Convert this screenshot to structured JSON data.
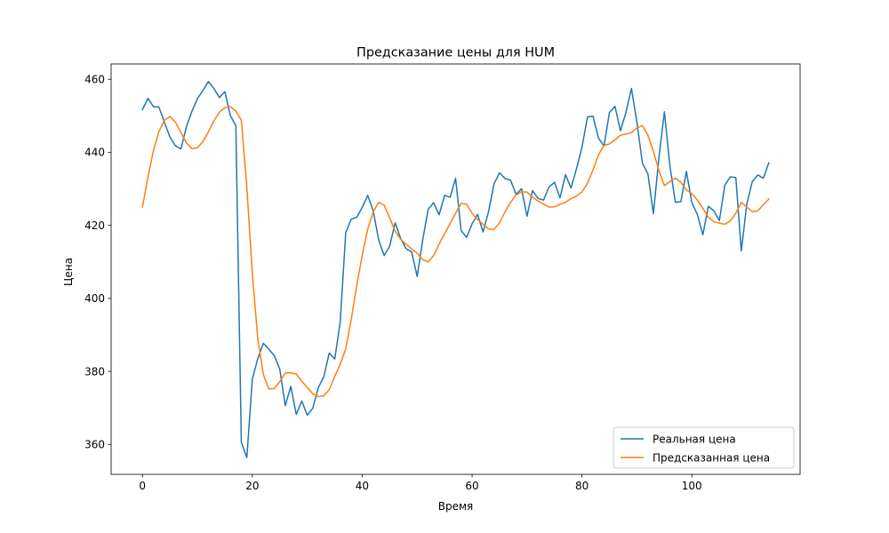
{
  "chart_data": {
    "type": "line",
    "title": "Предсказание цены для HUM",
    "xlabel": "Время",
    "ylabel": "Цена",
    "xlim": [
      -5.7,
      119.7
    ],
    "ylim": [
      351.8,
      464.2
    ],
    "xticks": [
      0,
      20,
      40,
      60,
      80,
      100
    ],
    "yticks": [
      360,
      380,
      400,
      420,
      440,
      460
    ],
    "grid": false,
    "legend_position": "lower right",
    "series": [
      {
        "name": "Реальная цена",
        "color": "#1f77b4",
        "x": [
          0,
          1,
          2,
          3,
          4,
          5,
          6,
          7,
          8,
          9,
          10,
          11,
          12,
          13,
          14,
          15,
          16,
          17,
          18,
          19,
          20,
          21,
          22,
          23,
          24,
          25,
          26,
          27,
          28,
          29,
          30,
          31,
          32,
          33,
          34,
          35,
          36,
          37,
          38,
          39,
          40,
          41,
          42,
          43,
          44,
          45,
          46,
          47,
          48,
          49,
          50,
          51,
          52,
          53,
          54,
          55,
          56,
          57,
          58,
          59,
          60,
          61,
          62,
          63,
          64,
          65,
          66,
          67,
          68,
          69,
          70,
          71,
          72,
          73,
          74,
          75,
          76,
          77,
          78,
          79,
          80,
          81,
          82,
          83,
          84,
          85,
          86,
          87,
          88,
          89,
          90,
          91,
          92,
          93,
          94,
          95,
          96,
          97,
          98,
          99,
          100,
          101,
          102,
          103,
          104,
          105,
          106,
          107,
          108,
          109,
          110,
          111,
          112,
          113,
          114
        ],
        "values": [
          451.7,
          454.8,
          452.5,
          452.4,
          448.2,
          444.2,
          441.8,
          440.9,
          447.0,
          451.2,
          454.7,
          456.9,
          459.4,
          457.5,
          455.0,
          456.6,
          450.1,
          447.3,
          360.6,
          356.4,
          377.9,
          383.5,
          387.7,
          386.1,
          384.3,
          380.6,
          370.6,
          375.9,
          368.2,
          371.9,
          368.0,
          369.9,
          375.5,
          378.5,
          385.0,
          383.4,
          393.6,
          418.0,
          421.7,
          422.2,
          424.9,
          428.2,
          424.0,
          416.0,
          411.7,
          414.3,
          420.7,
          416.4,
          413.6,
          412.7,
          406.0,
          415.9,
          424.4,
          426.2,
          422.9,
          428.2,
          427.7,
          432.9,
          418.6,
          416.7,
          420.4,
          423.0,
          418.2,
          423.8,
          431.4,
          434.4,
          432.8,
          432.4,
          428.5,
          430.0,
          422.5,
          429.5,
          427.4,
          426.9,
          430.5,
          431.8,
          427.5,
          433.9,
          430.2,
          435.5,
          441.4,
          449.7,
          449.9,
          443.9,
          441.7,
          450.9,
          452.6,
          445.9,
          450.9,
          457.5,
          448.2,
          437.0,
          434.1,
          423.2,
          438.5,
          451.1,
          436.3,
          426.3,
          426.5,
          434.8,
          426.2,
          423.0,
          417.4,
          425.2,
          424.0,
          421.3,
          431.0,
          433.3,
          433.1,
          413.0,
          425.8,
          432.0,
          433.8,
          432.9,
          437.1
        ]
      },
      {
        "name": "Предсказанная цена",
        "color": "#ff7f0e",
        "x": [
          0,
          1,
          2,
          3,
          4,
          5,
          6,
          7,
          8,
          9,
          10,
          11,
          12,
          13,
          14,
          15,
          16,
          17,
          18,
          19,
          20,
          21,
          22,
          23,
          24,
          25,
          26,
          27,
          28,
          29,
          30,
          31,
          32,
          33,
          34,
          35,
          36,
          37,
          38,
          39,
          40,
          41,
          42,
          43,
          44,
          45,
          46,
          47,
          48,
          49,
          50,
          51,
          52,
          53,
          54,
          55,
          56,
          57,
          58,
          59,
          60,
          61,
          62,
          63,
          64,
          65,
          66,
          67,
          68,
          69,
          70,
          71,
          72,
          73,
          74,
          75,
          76,
          77,
          78,
          79,
          80,
          81,
          82,
          83,
          84,
          85,
          86,
          87,
          88,
          89,
          90,
          91,
          92,
          93,
          94,
          95,
          96,
          97,
          98,
          99,
          100,
          101,
          102,
          103,
          104,
          105,
          106,
          107,
          108,
          109,
          110,
          111,
          112,
          113,
          114
        ],
        "values": [
          425.0,
          433.2,
          440.5,
          445.7,
          448.8,
          449.8,
          448.3,
          445.4,
          442.6,
          441.0,
          441.2,
          442.9,
          445.6,
          448.6,
          451.0,
          452.2,
          452.5,
          451.3,
          448.8,
          430.4,
          406.8,
          388.9,
          379.2,
          375.2,
          375.3,
          377.2,
          379.6,
          379.6,
          379.3,
          377.3,
          375.6,
          373.9,
          373.1,
          373.3,
          375.0,
          378.6,
          382.0,
          386.2,
          394.2,
          403.5,
          411.8,
          419.0,
          423.7,
          426.3,
          425.5,
          422.0,
          418.4,
          416.2,
          414.8,
          413.5,
          412.4,
          410.6,
          410.0,
          411.7,
          414.9,
          417.7,
          420.5,
          423.3,
          426.0,
          425.8,
          423.3,
          421.6,
          420.3,
          419.0,
          418.9,
          420.7,
          423.7,
          426.3,
          428.3,
          429.2,
          429.1,
          427.7,
          426.7,
          425.8,
          425.0,
          425.1,
          425.8,
          426.3,
          427.3,
          428.0,
          429.2,
          431.5,
          435.2,
          439.3,
          441.9,
          442.3,
          443.4,
          444.7,
          445.0,
          445.4,
          446.7,
          447.3,
          444.7,
          440.2,
          435.0,
          430.9,
          432.0,
          432.9,
          431.8,
          429.7,
          428.7,
          426.9,
          424.7,
          422.2,
          421.0,
          420.6,
          420.3,
          421.2,
          423.3,
          426.3,
          425.0,
          423.7,
          424.0,
          425.6,
          427.2
        ]
      }
    ]
  }
}
